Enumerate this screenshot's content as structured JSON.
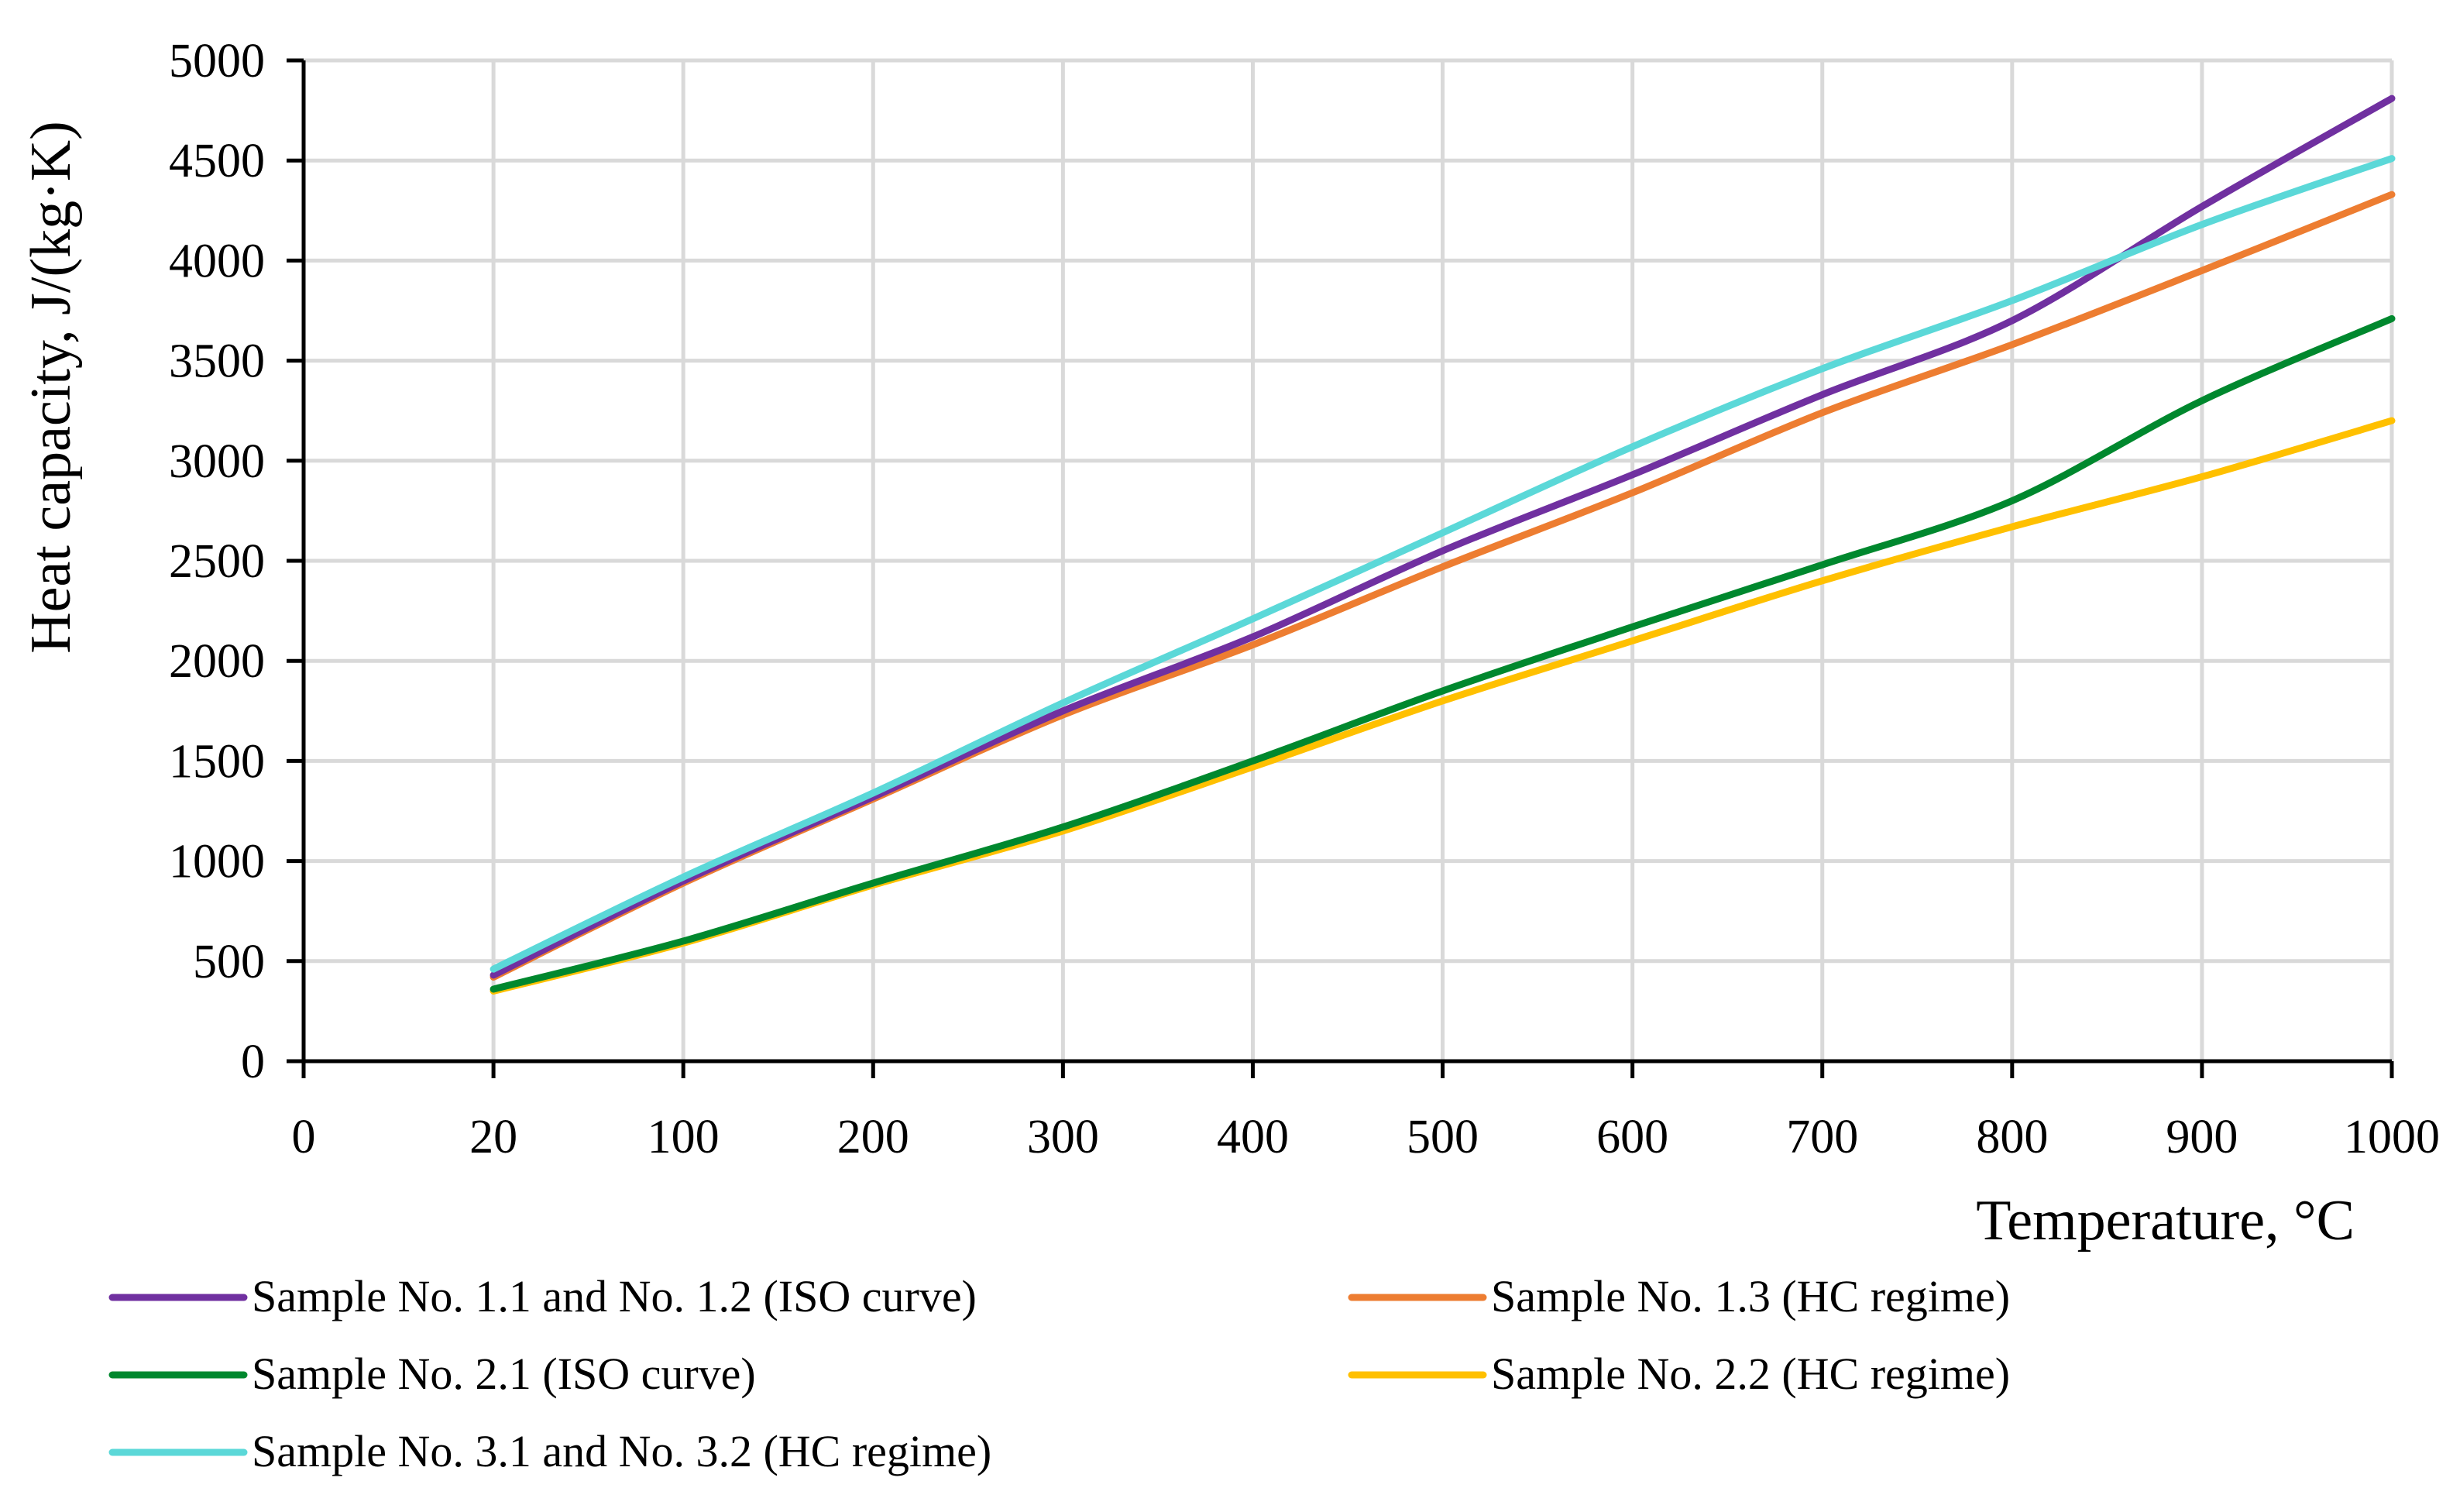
{
  "chart_data": {
    "type": "line",
    "title": "",
    "xlabel": "Temperature, °C",
    "ylabel": "Heat capacity, J/(kg·K)",
    "xlim": [
      0,
      1000
    ],
    "ylim": [
      0,
      5000
    ],
    "x_ticks": [
      0,
      20,
      100,
      200,
      300,
      400,
      500,
      600,
      700,
      800,
      900,
      1000
    ],
    "y_ticks": [
      0,
      500,
      1000,
      1500,
      2000,
      2500,
      3000,
      3500,
      4000,
      4500,
      5000
    ],
    "grid": true,
    "legend_position": "bottom",
    "series": [
      {
        "name": "Sample No. 1.1 and No. 1.2 (ISO curve)",
        "color": "#7030A0",
        "x": [
          20,
          100,
          200,
          300,
          400,
          500,
          600,
          700,
          800,
          900,
          1000
        ],
        "y": [
          430,
          900,
          1320,
          1750,
          2120,
          2550,
          2930,
          3330,
          3700,
          4270,
          4810
        ]
      },
      {
        "name": "Sample No. 1.3 (HC regime)",
        "color": "#ED7D31",
        "x": [
          20,
          100,
          200,
          300,
          400,
          500,
          600,
          700,
          800,
          900,
          1000
        ],
        "y": [
          420,
          890,
          1310,
          1730,
          2080,
          2470,
          2840,
          3240,
          3580,
          3950,
          4330
        ]
      },
      {
        "name": "Sample No. 2.1 (ISO curve)",
        "color": "#00882E",
        "x": [
          20,
          100,
          200,
          300,
          400,
          500,
          600,
          700,
          800,
          900,
          1000
        ],
        "y": [
          360,
          600,
          890,
          1170,
          1500,
          1850,
          2170,
          2480,
          2800,
          3300,
          3710
        ]
      },
      {
        "name": "Sample No. 2.2 (HC regime)",
        "color": "#FFC000",
        "x": [
          20,
          100,
          200,
          300,
          400,
          500,
          600,
          700,
          800,
          900,
          1000
        ],
        "y": [
          350,
          590,
          880,
          1150,
          1470,
          1800,
          2100,
          2400,
          2670,
          2920,
          3200
        ]
      },
      {
        "name": "Sample No. 3.1 and No. 3.2 (HC regime)",
        "color": "#5BD8D8",
        "x": [
          20,
          100,
          200,
          300,
          400,
          500,
          600,
          700,
          800,
          900,
          1000
        ],
        "y": [
          460,
          920,
          1340,
          1790,
          2210,
          2640,
          3070,
          3460,
          3800,
          4180,
          4510
        ]
      }
    ]
  }
}
